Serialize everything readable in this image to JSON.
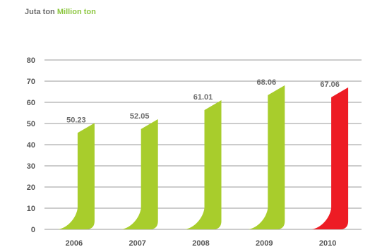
{
  "unit_label": {
    "id": "Juta ton",
    "en": "Million ton"
  },
  "colors": {
    "default": "#a8cd2c",
    "highlight": "#ed1c24",
    "grid": "#9a9a9a",
    "label": "#6b6b6b"
  },
  "chart_data": {
    "type": "bar",
    "categories": [
      "2006",
      "2007",
      "2008",
      "2009",
      "2010"
    ],
    "values": [
      50.23,
      52.05,
      61.01,
      68.06,
      67.06
    ],
    "data_labels": [
      "50.23",
      "52.05",
      "61.01",
      "68.06",
      "67.06"
    ],
    "highlight_index": 4,
    "yticks": [
      0,
      10,
      20,
      30,
      40,
      50,
      60,
      70,
      80
    ],
    "ylim": [
      0,
      80
    ],
    "grid": true,
    "title": "",
    "xlabel": "",
    "ylabel": ""
  }
}
